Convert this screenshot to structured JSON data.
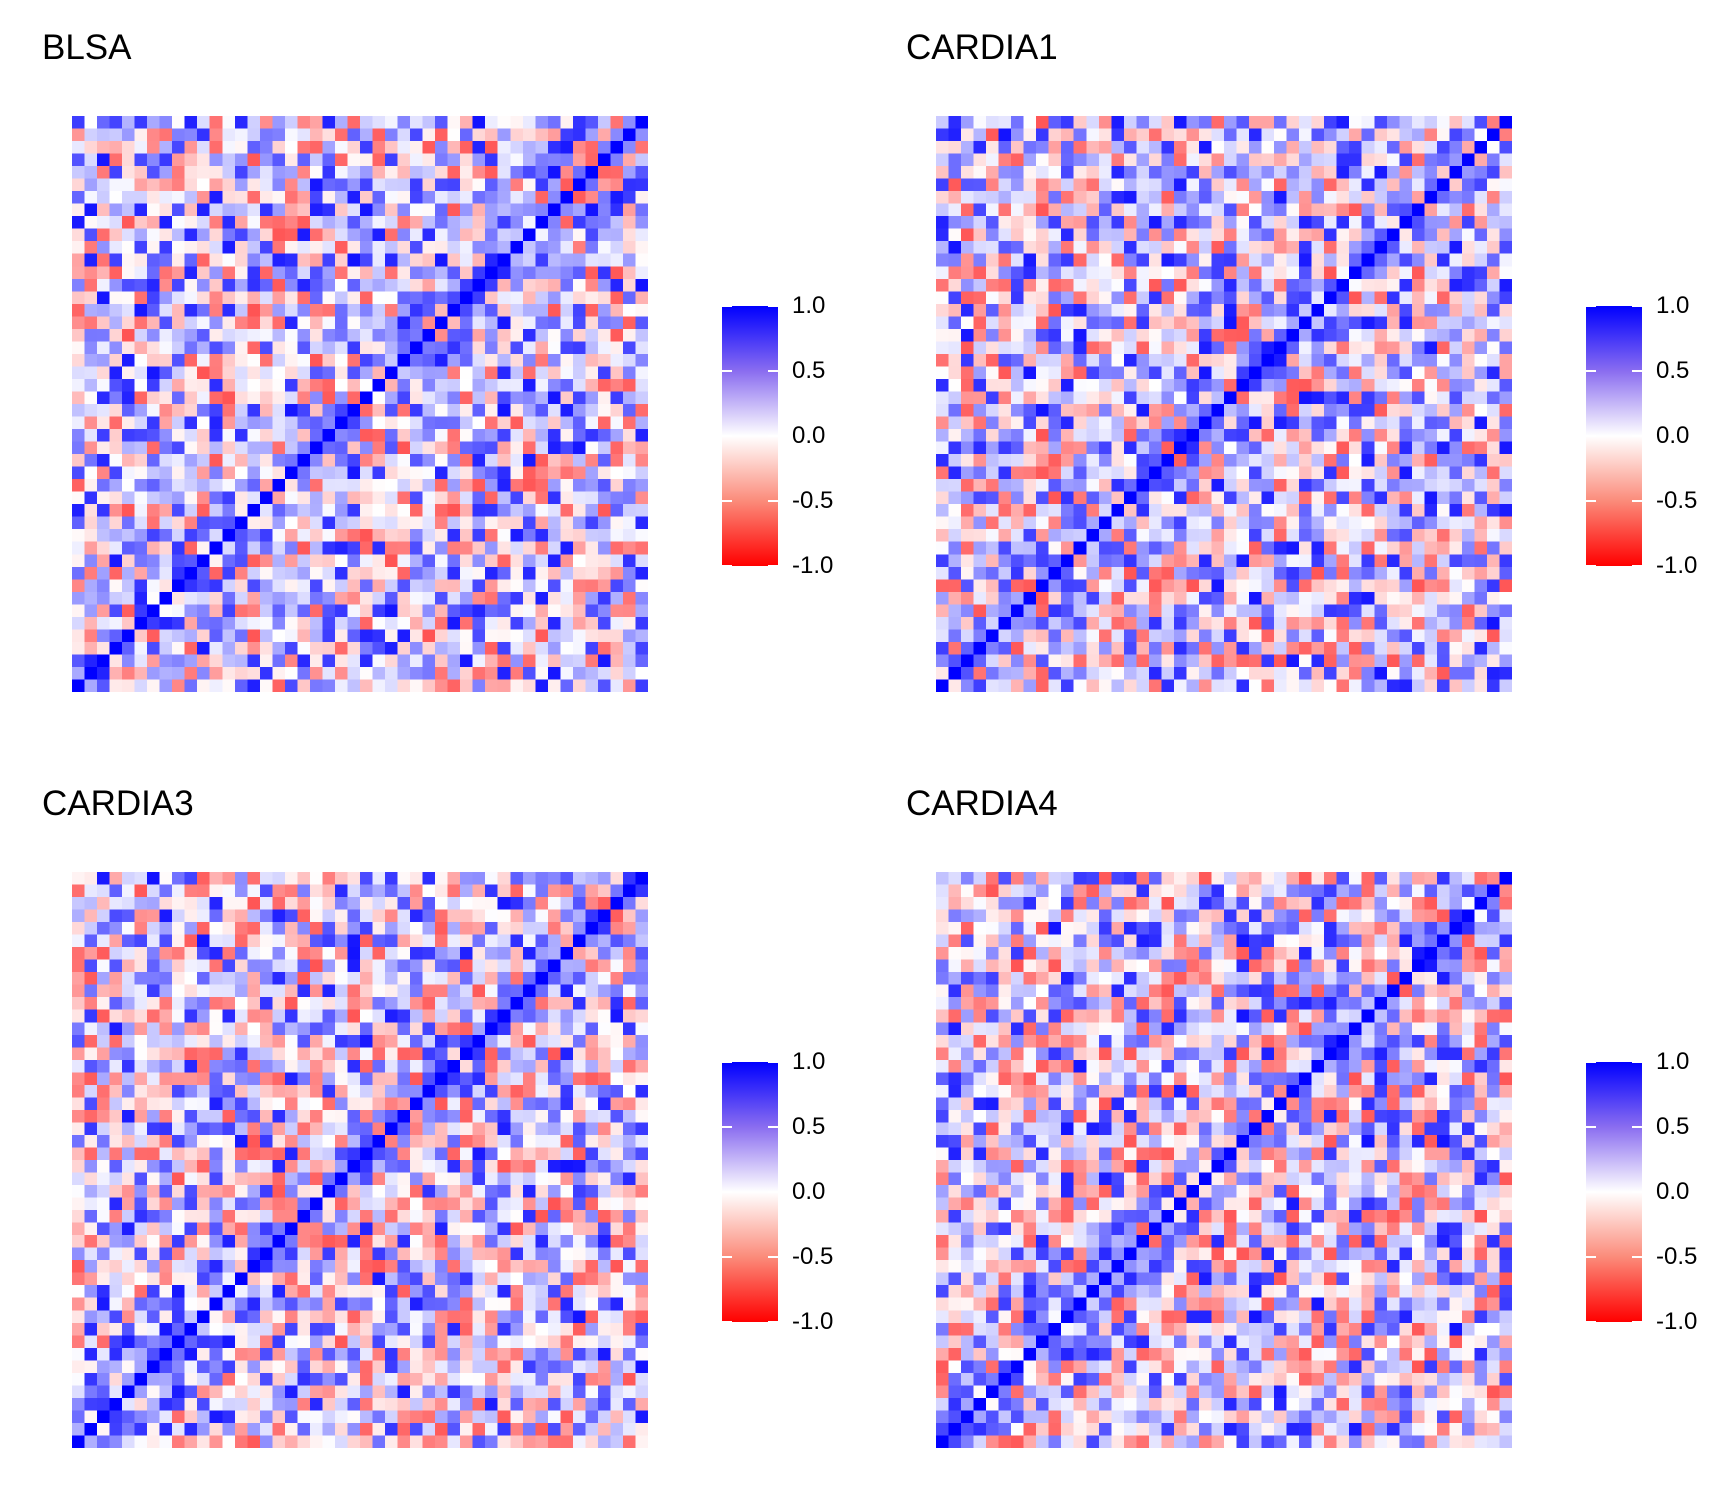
{
  "colors": {
    "low": "#FF0000",
    "mid": "#FFFFFF",
    "high": "#0000FF"
  },
  "chart_data": [
    {
      "type": "heatmap",
      "title": "BLSA",
      "n": 46,
      "seed": 11,
      "legend": {
        "ticks": [
          "1.0",
          "0.5",
          "0.0",
          "-0.5",
          "-1.0"
        ],
        "range": [
          -1.0,
          1.0
        ]
      }
    },
    {
      "type": "heatmap",
      "title": "CARDIA1",
      "n": 46,
      "seed": 23,
      "legend": {
        "ticks": [
          "1.0",
          "0.5",
          "0.0",
          "-0.5",
          "-1.0"
        ],
        "range": [
          -1.0,
          1.0
        ]
      }
    },
    {
      "type": "heatmap",
      "title": "CARDIA3",
      "n": 46,
      "seed": 37,
      "legend": {
        "ticks": [
          "1.0",
          "0.5",
          "0.0",
          "-0.5",
          "-1.0"
        ],
        "range": [
          -1.0,
          1.0
        ]
      }
    },
    {
      "type": "heatmap",
      "title": "CARDIA4",
      "n": 46,
      "seed": 59,
      "legend": {
        "ticks": [
          "1.0",
          "0.5",
          "0.0",
          "-0.5",
          "-1.0"
        ],
        "range": [
          -1.0,
          1.0
        ]
      }
    }
  ]
}
